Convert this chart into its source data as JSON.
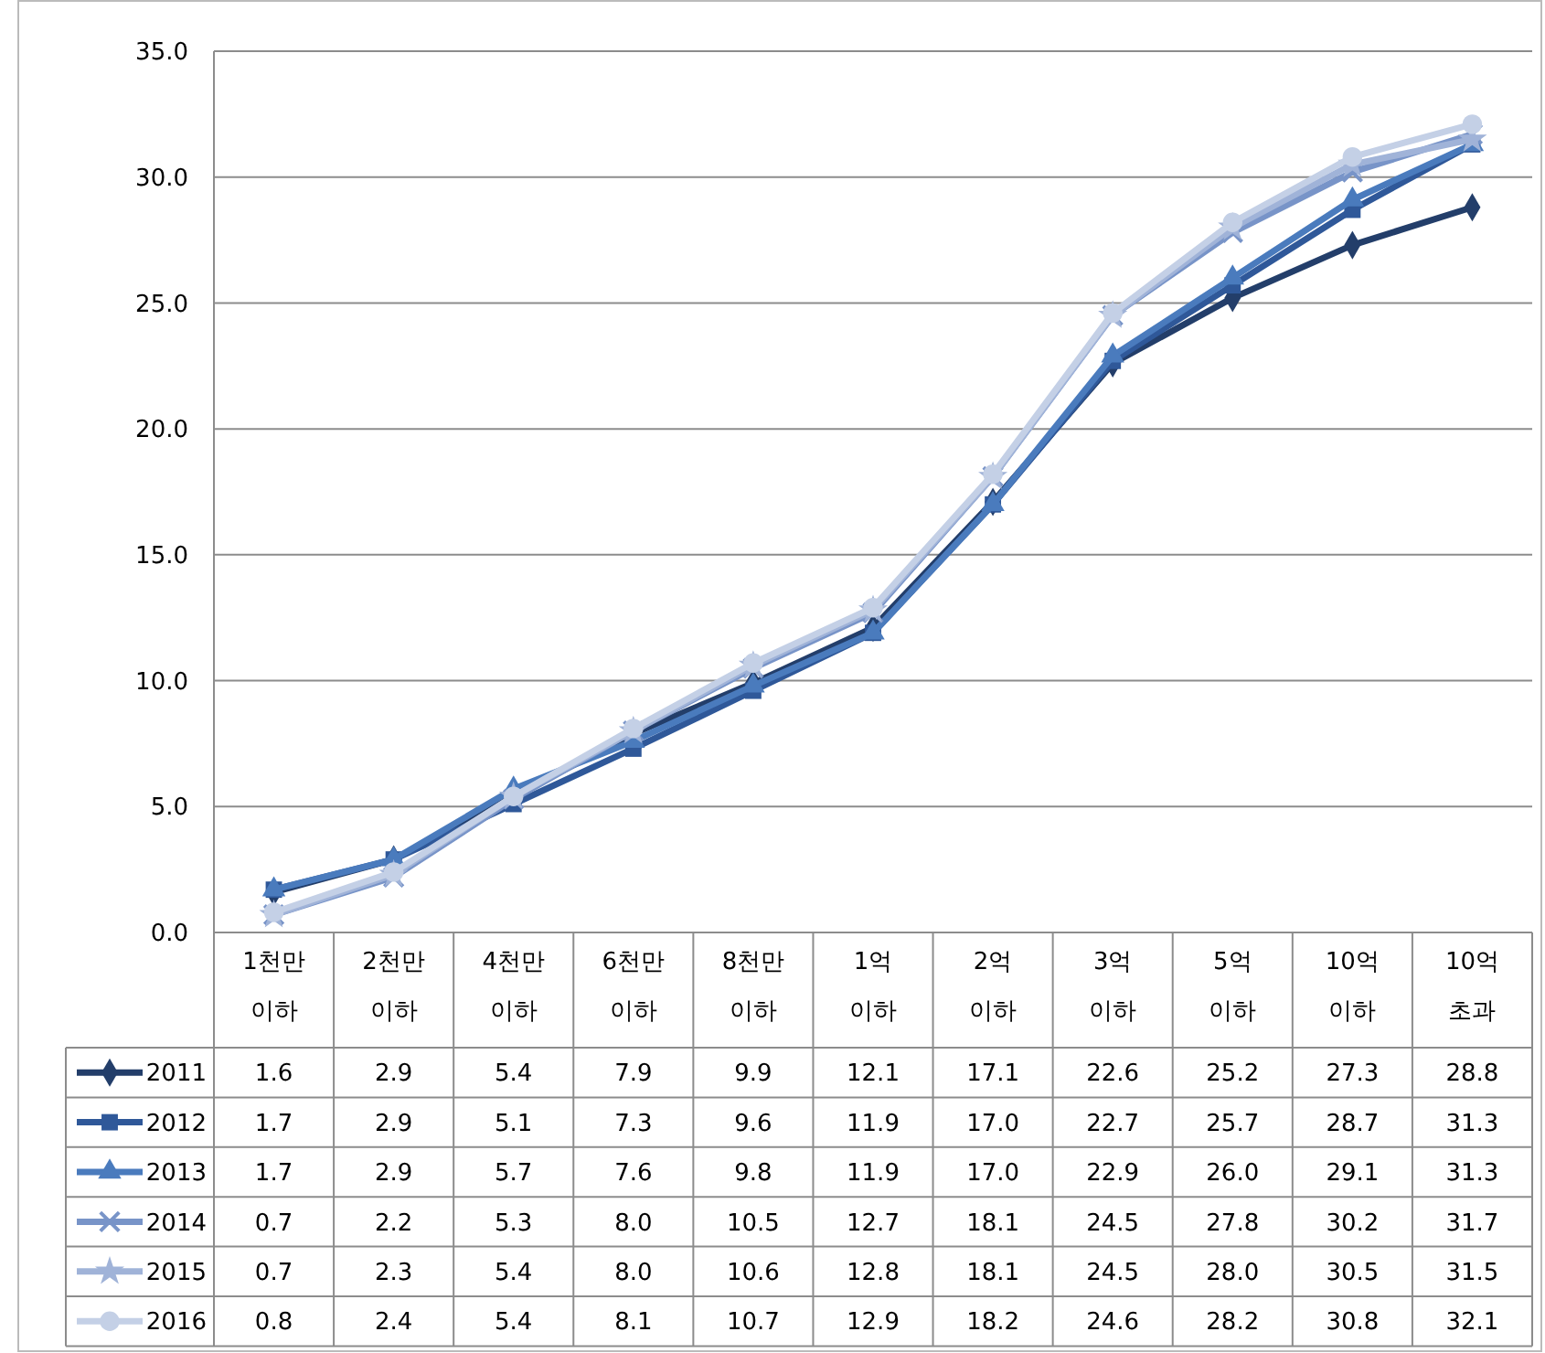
{
  "chart_data": {
    "type": "line",
    "categories": [
      "1천만 이하",
      "2천만 이하",
      "4천만 이하",
      "6천만 이하",
      "8천만 이하",
      "1억 이하",
      "2억 이하",
      "3억 이하",
      "5억 이하",
      "10억 이하",
      "10억 초과"
    ],
    "series": [
      {
        "name": "2011",
        "color": "#233e6a",
        "marker": "diamond",
        "values": [
          1.6,
          2.9,
          5.4,
          7.9,
          9.9,
          12.1,
          17.1,
          22.6,
          25.2,
          27.3,
          28.8
        ],
        "value_labels": [
          "1.6",
          "2.9",
          "5.4",
          "7.9",
          "9.9",
          "12.1",
          "17.1",
          "22.6",
          "25.2",
          "27.3",
          "28.8"
        ]
      },
      {
        "name": "2012",
        "color": "#2f5899",
        "marker": "square",
        "values": [
          1.7,
          2.9,
          5.1,
          7.3,
          9.6,
          11.9,
          17.0,
          22.7,
          25.7,
          28.7,
          31.3
        ],
        "value_labels": [
          "1.7",
          "2.9",
          "5.1",
          "7.3",
          "9.6",
          "11.9",
          "17.0",
          "22.7",
          "25.7",
          "28.7",
          "31.3"
        ]
      },
      {
        "name": "2013",
        "color": "#4a7bbd",
        "marker": "triangle",
        "values": [
          1.7,
          2.9,
          5.7,
          7.6,
          9.8,
          11.9,
          17.0,
          22.9,
          26.0,
          29.1,
          31.3
        ],
        "value_labels": [
          "1.7",
          "2.9",
          "5.7",
          "7.6",
          "9.8",
          "11.9",
          "17.0",
          "22.9",
          "26.0",
          "29.1",
          "31.3"
        ]
      },
      {
        "name": "2014",
        "color": "#7894c8",
        "marker": "cross",
        "values": [
          0.7,
          2.2,
          5.3,
          8.0,
          10.5,
          12.7,
          18.1,
          24.5,
          27.8,
          30.2,
          31.7
        ],
        "value_labels": [
          "0.7",
          "2.2",
          "5.3",
          "8.0",
          "10.5",
          "12.7",
          "18.1",
          "24.5",
          "27.8",
          "30.2",
          "31.7"
        ]
      },
      {
        "name": "2015",
        "color": "#a0b3d8",
        "marker": "star",
        "values": [
          0.7,
          2.3,
          5.4,
          8.0,
          10.6,
          12.8,
          18.1,
          24.5,
          28.0,
          30.5,
          31.5
        ],
        "value_labels": [
          "0.7",
          "2.3",
          "5.4",
          "8.0",
          "10.6",
          "12.8",
          "18.1",
          "24.5",
          "28.0",
          "30.5",
          "31.5"
        ]
      },
      {
        "name": "2016",
        "color": "#c4d0e6",
        "marker": "circle",
        "values": [
          0.8,
          2.4,
          5.4,
          8.1,
          10.7,
          12.9,
          18.2,
          24.6,
          28.2,
          30.8,
          32.1
        ],
        "value_labels": [
          "0.8",
          "2.4",
          "5.4",
          "8.1",
          "10.7",
          "12.9",
          "18.2",
          "24.6",
          "28.2",
          "30.8",
          "32.1"
        ]
      }
    ],
    "ylim": [
      0,
      35
    ],
    "yticks": [
      {
        "value": 0,
        "label": "0.0"
      },
      {
        "value": 5,
        "label": "5.0"
      },
      {
        "value": 10,
        "label": "10.0"
      },
      {
        "value": 15,
        "label": "15.0"
      },
      {
        "value": 20,
        "label": "20.0"
      },
      {
        "value": 25,
        "label": "25.0"
      },
      {
        "value": 30,
        "label": "30.0"
      },
      {
        "value": 35,
        "label": "35.0"
      }
    ],
    "grid": "y",
    "legend": "bottom",
    "line_style": "solid"
  }
}
